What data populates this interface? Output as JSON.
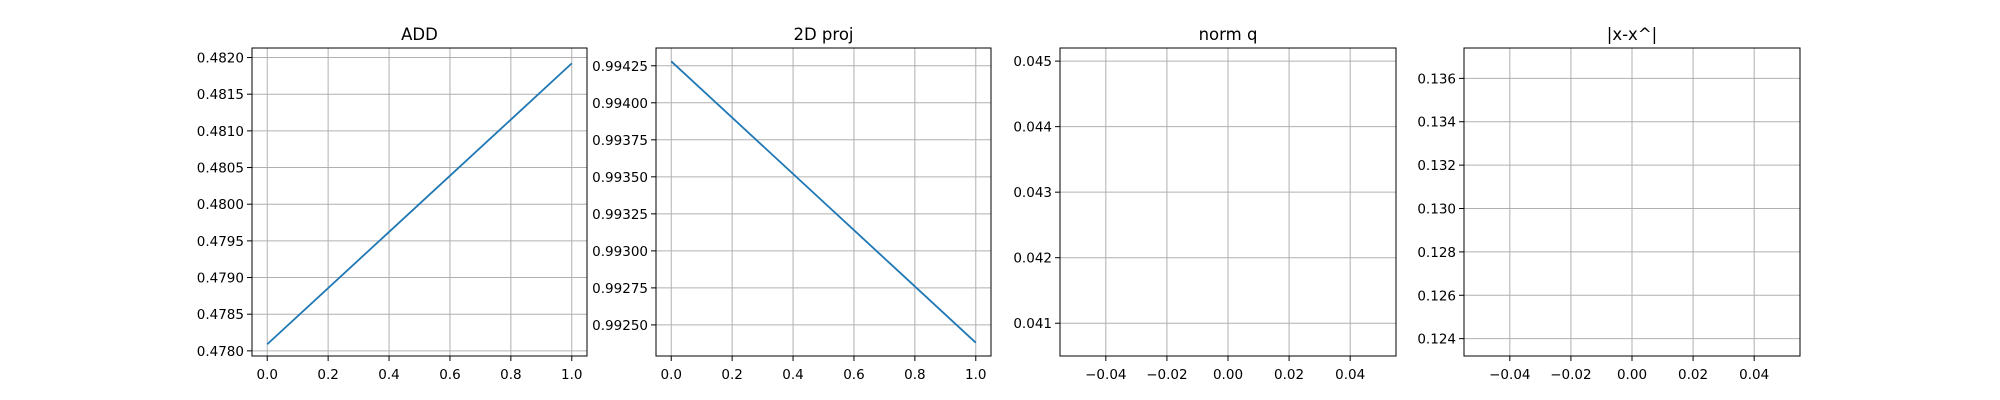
{
  "chart_data": [
    {
      "type": "line",
      "title": "ADD",
      "xlabel": "",
      "ylabel": "",
      "xlim": [
        -0.05,
        1.05
      ],
      "ylim": [
        0.47793,
        0.48213
      ],
      "xticks": [
        "0.0",
        "0.2",
        "0.4",
        "0.6",
        "0.8",
        "1.0"
      ],
      "yticks": [
        "0.4780",
        "0.4785",
        "0.4790",
        "0.4795",
        "0.4800",
        "0.4805",
        "0.4810",
        "0.4815",
        "0.4820"
      ],
      "grid": true,
      "series": [
        {
          "x": [
            0,
            1
          ],
          "y": [
            0.47809,
            0.48192
          ],
          "color": "#1f77b4"
        }
      ]
    },
    {
      "type": "line",
      "title": "2D proj",
      "xlabel": "",
      "ylabel": "",
      "xlim": [
        -0.05,
        1.05
      ],
      "ylim": [
        0.99229,
        0.99437
      ],
      "xticks": [
        "0.0",
        "0.2",
        "0.4",
        "0.6",
        "0.8",
        "1.0"
      ],
      "yticks": [
        "0.99250",
        "0.99275",
        "0.99300",
        "0.99325",
        "0.99350",
        "0.99375",
        "0.99400",
        "0.99425"
      ],
      "grid": true,
      "series": [
        {
          "x": [
            0,
            1
          ],
          "y": [
            0.99428,
            0.99238
          ],
          "color": "#1f77b4"
        }
      ]
    },
    {
      "type": "line",
      "title": "norm q",
      "xlabel": "",
      "ylabel": "",
      "xlim": [
        -0.055,
        0.055
      ],
      "ylim": [
        0.0405,
        0.0452
      ],
      "xticks": [
        "−0.04",
        "−0.02",
        "0.00",
        "0.02",
        "0.04"
      ],
      "yticks": [
        "0.041",
        "0.042",
        "0.043",
        "0.044",
        "0.045"
      ],
      "grid": true,
      "series": []
    },
    {
      "type": "line",
      "title": "|x-x^|",
      "xlabel": "",
      "ylabel": "",
      "xlim": [
        -0.055,
        0.055
      ],
      "ylim": [
        0.1232,
        0.1374
      ],
      "xticks": [
        "−0.04",
        "−0.02",
        "0.00",
        "0.02",
        "0.04"
      ],
      "yticks": [
        "0.124",
        "0.126",
        "0.128",
        "0.130",
        "0.132",
        "0.134",
        "0.136"
      ],
      "grid": true,
      "series": []
    }
  ]
}
